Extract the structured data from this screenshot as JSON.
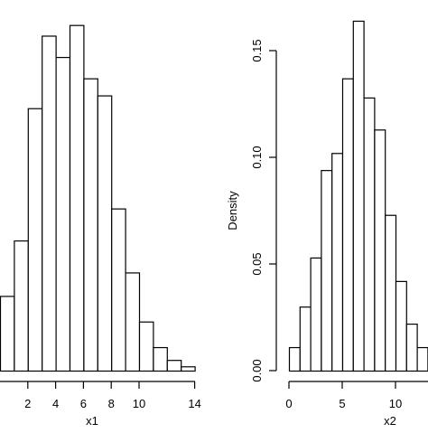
{
  "chart_data": [
    {
      "type": "bar",
      "histogram": true,
      "title": "",
      "xlabel": "x1",
      "ylabel": "",
      "xlim": [
        0,
        14
      ],
      "x_ticks": [
        2,
        4,
        6,
        8,
        10,
        14
      ],
      "x_tick_labels": [
        "2",
        "4",
        "6",
        "8",
        "10",
        "14"
      ],
      "bin_edges": [
        0,
        1,
        2,
        3,
        4,
        5,
        6,
        7,
        8,
        9,
        10,
        11,
        12,
        13,
        14
      ],
      "values": [
        0.035,
        0.061,
        0.123,
        0.157,
        0.147,
        0.162,
        0.137,
        0.129,
        0.076,
        0.046,
        0.023,
        0.011,
        0.005,
        0.002
      ]
    },
    {
      "type": "bar",
      "histogram": true,
      "title": "",
      "xlabel": "x2",
      "ylabel": "Density",
      "ylim": [
        0,
        0.16
      ],
      "y_ticks": [
        0.0,
        0.05,
        0.1,
        0.15
      ],
      "y_tick_labels": [
        "0.00",
        "0.05",
        "0.10",
        "0.15"
      ],
      "x_ticks": [
        0,
        5,
        10
      ],
      "x_tick_labels": [
        "0",
        "5",
        "10"
      ],
      "bin_edges": [
        0,
        1,
        2,
        3,
        4,
        5,
        6,
        7,
        8,
        9,
        10,
        11,
        12,
        13
      ],
      "values": [
        0.011,
        0.03,
        0.053,
        0.094,
        0.102,
        0.137,
        0.164,
        0.128,
        0.113,
        0.073,
        0.042,
        0.022,
        0.011
      ]
    }
  ]
}
